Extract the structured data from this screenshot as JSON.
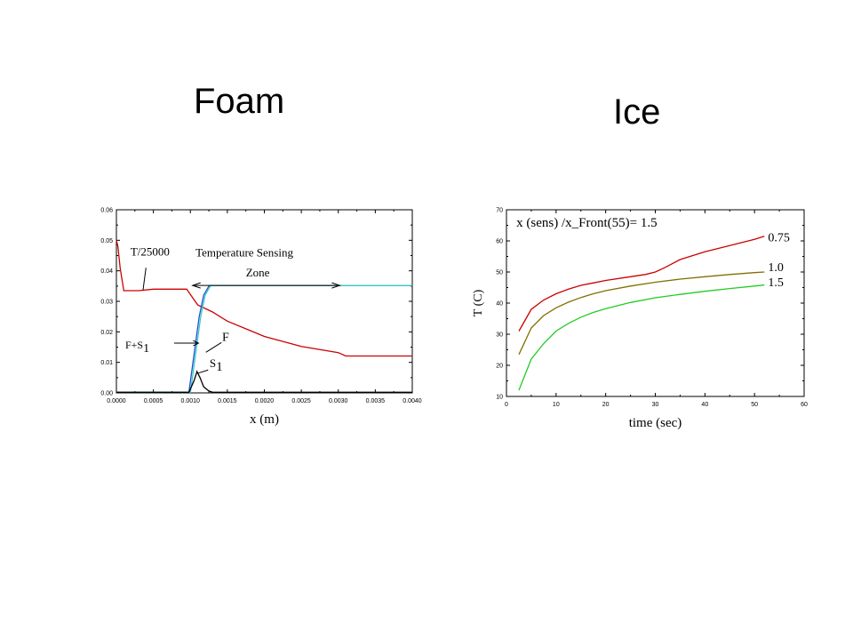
{
  "titles": {
    "left": "Foam",
    "right": "Ice"
  },
  "chart_data": [
    {
      "type": "line",
      "title": "",
      "xlabel": "x (m)",
      "ylabel": "",
      "xlim": [
        0,
        0.004
      ],
      "ylim": [
        0,
        0.06
      ],
      "x_ticks": [
        0,
        0.0005,
        0.001,
        0.0015,
        0.002,
        0.0025,
        0.003,
        0.0035,
        0.004
      ],
      "x_tick_labels": [
        "0.0000",
        "0.0005",
        "0.0010",
        "0.0015",
        "0.0020",
        "0.0025",
        "0.0030",
        "0.0035",
        "0.0040"
      ],
      "y_ticks": [
        0,
        0.01,
        0.02,
        0.03,
        0.04,
        0.05,
        0.06
      ],
      "y_tick_labels": [
        "0.00",
        "0.01",
        "0.02",
        "0.03",
        "0.04",
        "0.05",
        "0.06"
      ],
      "grid": false,
      "series": [
        {
          "name": "T/25000",
          "color": "#cc0000",
          "points": [
            [
              0,
              0.05
            ],
            [
              2e-05,
              0.048
            ],
            [
              5e-05,
              0.041
            ],
            [
              0.0001,
              0.0335
            ],
            [
              0.0003,
              0.0335
            ],
            [
              0.0005,
              0.034
            ],
            [
              0.00095,
              0.034
            ],
            [
              0.00105,
              0.0305
            ],
            [
              0.0011,
              0.0288
            ],
            [
              0.0013,
              0.0265
            ],
            [
              0.0015,
              0.0235
            ],
            [
              0.0018,
              0.0205
            ],
            [
              0.002,
              0.0185
            ],
            [
              0.0025,
              0.0152
            ],
            [
              0.003,
              0.0132
            ],
            [
              0.0031,
              0.0121
            ],
            [
              0.0035,
              0.0121
            ],
            [
              0.004,
              0.0121
            ]
          ]
        },
        {
          "name": "F+S1",
          "color": "#1f4fcc",
          "points": [
            [
              0,
              0.0002
            ],
            [
              0.00098,
              0.0002
            ],
            [
              0.00112,
              0.025
            ],
            [
              0.00118,
              0.032
            ],
            [
              0.00125,
              0.035
            ],
            [
              0.0013,
              0.0352
            ],
            [
              0.004,
              0.0352
            ]
          ]
        },
        {
          "name": "F",
          "color": "#33cccc",
          "points": [
            [
              0,
              0.0002
            ],
            [
              0.001,
              0.0002
            ],
            [
              0.00114,
              0.025
            ],
            [
              0.0012,
              0.032
            ],
            [
              0.00127,
              0.035
            ],
            [
              0.0013,
              0.0352
            ],
            [
              0.004,
              0.0352
            ]
          ]
        },
        {
          "name": "S1",
          "color": "#000000",
          "points": [
            [
              0,
              0.0002
            ],
            [
              0.00098,
              0.0002
            ],
            [
              0.00105,
              0.004
            ],
            [
              0.00109,
              0.007
            ],
            [
              0.00113,
              0.005
            ],
            [
              0.00118,
              0.002
            ],
            [
              0.00125,
              0.0006
            ],
            [
              0.0013,
              0.0002
            ],
            [
              0.004,
              0.0002
            ]
          ]
        }
      ],
      "annotations": [
        {
          "text": "T/25000",
          "x": 0.00019,
          "y": 0.045
        },
        {
          "text": "Temperature Sensing",
          "x": 0.00107,
          "y": 0.0447
        },
        {
          "text": "Zone",
          "x": 0.00175,
          "y": 0.0382
        },
        {
          "text": "F+S",
          "sub": "1",
          "x": 0.00012,
          "y": 0.0145
        },
        {
          "text": "F",
          "x": 0.00143,
          "y": 0.017
        },
        {
          "text": "S",
          "sub": "1",
          "x": 0.00126,
          "y": 0.0085
        }
      ]
    },
    {
      "type": "line",
      "title": "x (sens) /x_Front(55)= 1.5",
      "xlabel": "time (sec)",
      "ylabel": "T (C)",
      "xlim": [
        0,
        60
      ],
      "ylim": [
        10,
        70
      ],
      "x_ticks": [
        0,
        10,
        20,
        30,
        40,
        50,
        60
      ],
      "x_tick_labels": [
        "0",
        "10",
        "20",
        "30",
        "40",
        "50",
        "60"
      ],
      "y_ticks": [
        10,
        20,
        30,
        40,
        50,
        60,
        70
      ],
      "y_tick_labels": [
        "10",
        "20",
        "30",
        "40",
        "50",
        "60",
        "70"
      ],
      "grid": false,
      "series": [
        {
          "name": "0.75",
          "color": "#cc0000",
          "points": [
            [
              2.5,
              31
            ],
            [
              5,
              38
            ],
            [
              7.5,
              41
            ],
            [
              10,
              43
            ],
            [
              12.5,
              44.5
            ],
            [
              15,
              45.7
            ],
            [
              17.5,
              46.5
            ],
            [
              20,
              47.3
            ],
            [
              25,
              48.5
            ],
            [
              28,
              49.2
            ],
            [
              30,
              50
            ],
            [
              32,
              51.5
            ],
            [
              35,
              54
            ],
            [
              40,
              56.5
            ],
            [
              45,
              58.5
            ],
            [
              50,
              60.5
            ],
            [
              52,
              61.5
            ]
          ]
        },
        {
          "name": "1.0",
          "color": "#807000",
          "points": [
            [
              2.5,
              23.5
            ],
            [
              5,
              32
            ],
            [
              7.5,
              36
            ],
            [
              10,
              38.5
            ],
            [
              12.5,
              40.3
            ],
            [
              15,
              41.8
            ],
            [
              17.5,
              43
            ],
            [
              20,
              44
            ],
            [
              25,
              45.5
            ],
            [
              30,
              46.7
            ],
            [
              35,
              47.7
            ],
            [
              40,
              48.5
            ],
            [
              45,
              49.2
            ],
            [
              50,
              49.8
            ],
            [
              52,
              50
            ]
          ]
        },
        {
          "name": "1.5",
          "color": "#22cc22",
          "points": [
            [
              2.5,
              12
            ],
            [
              5,
              22
            ],
            [
              7.5,
              27
            ],
            [
              10,
              31
            ],
            [
              12.5,
              33.5
            ],
            [
              15,
              35.5
            ],
            [
              17.5,
              37
            ],
            [
              20,
              38.2
            ],
            [
              25,
              40.2
            ],
            [
              30,
              41.7
            ],
            [
              35,
              42.8
            ],
            [
              40,
              43.8
            ],
            [
              45,
              44.7
            ],
            [
              50,
              45.5
            ],
            [
              52,
              45.8
            ]
          ]
        }
      ]
    }
  ]
}
